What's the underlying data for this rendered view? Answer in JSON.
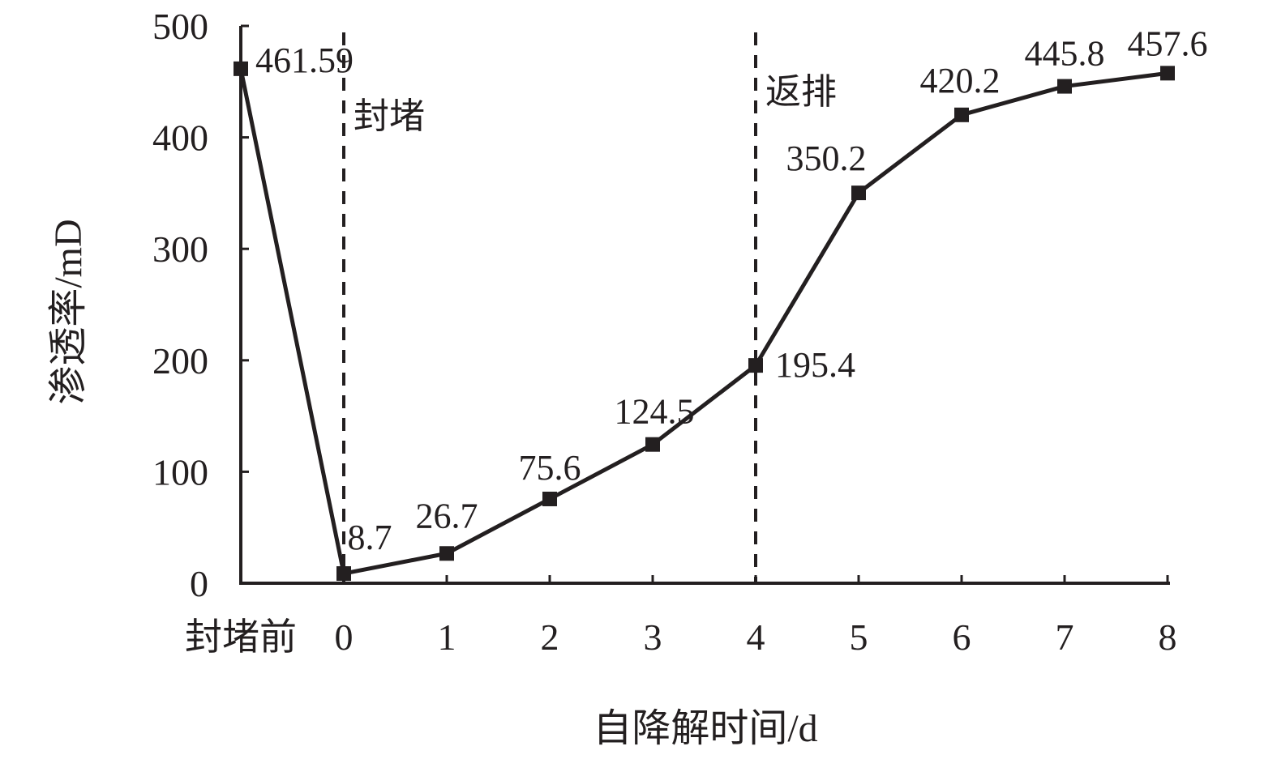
{
  "chart_data": {
    "type": "line",
    "title": "",
    "xlabel": "自降解时间/d",
    "ylabel": "渗透率/mD",
    "categories": [
      "封堵前",
      "0",
      "1",
      "2",
      "3",
      "4",
      "5",
      "6",
      "7",
      "8"
    ],
    "series": [
      {
        "values": [
          461.59,
          8.7,
          26.7,
          75.6,
          124.5,
          195.4,
          350.2,
          420.2,
          445.8,
          457.6
        ],
        "labels": [
          "461.59",
          "8.7",
          "26.7",
          "75.6",
          "124.5",
          "195.4",
          "350.2",
          "420.2",
          "445.8",
          "457.6"
        ],
        "color": "#231f20",
        "marker": "square"
      }
    ],
    "ylim": [
      0,
      500
    ],
    "yticks": [
      "0",
      "100",
      "200",
      "300",
      "400",
      "500"
    ],
    "grid": false,
    "legend": "none",
    "annotations": [
      {
        "text": "封堵",
        "at_category": "0"
      },
      {
        "text": "返排",
        "at_category": "4"
      }
    ]
  }
}
